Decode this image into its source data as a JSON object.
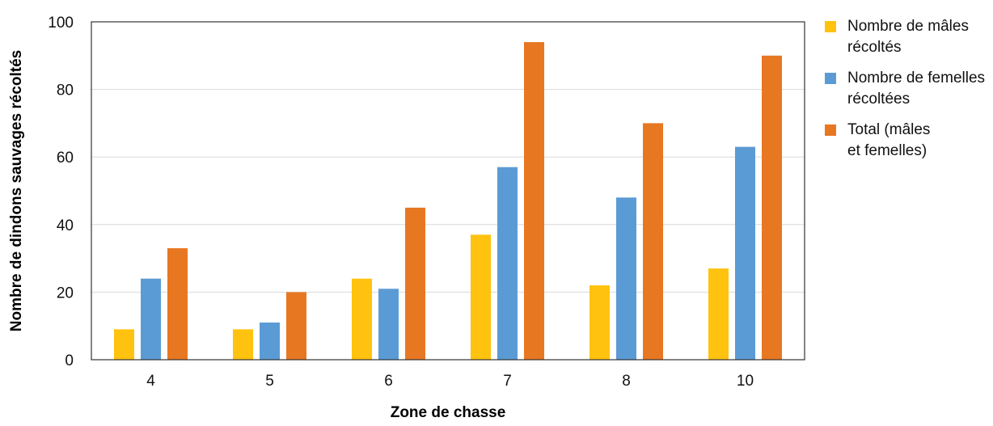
{
  "chart_data": {
    "type": "bar",
    "xlabel": "Zone de chasse",
    "ylabel": "Nombre de dindons sauvages récoltés",
    "categories": [
      "4",
      "5",
      "6",
      "7",
      "8",
      "10"
    ],
    "ylim": [
      0,
      100
    ],
    "yticks": [
      "0",
      "20",
      "40",
      "60",
      "80",
      "100"
    ],
    "grid": true,
    "legend_position": "right",
    "series": [
      {
        "name": "Nombre de mâles récoltés",
        "name_lines": [
          "Nombre de mâles",
          "récoltés"
        ],
        "color": "#FFC20E",
        "values": [
          9,
          9,
          24,
          37,
          22,
          27
        ]
      },
      {
        "name": "Nombre de femelles récoltées",
        "name_lines": [
          "Nombre de femelles",
          "récoltées"
        ],
        "color": "#5B9BD5",
        "values": [
          24,
          11,
          21,
          57,
          48,
          63
        ]
      },
      {
        "name": "Total (mâles et femelles)",
        "name_lines": [
          "Total (mâles",
          "et femelles)"
        ],
        "color": "#E87722",
        "values": [
          33,
          20,
          45,
          94,
          70,
          90
        ]
      }
    ]
  }
}
